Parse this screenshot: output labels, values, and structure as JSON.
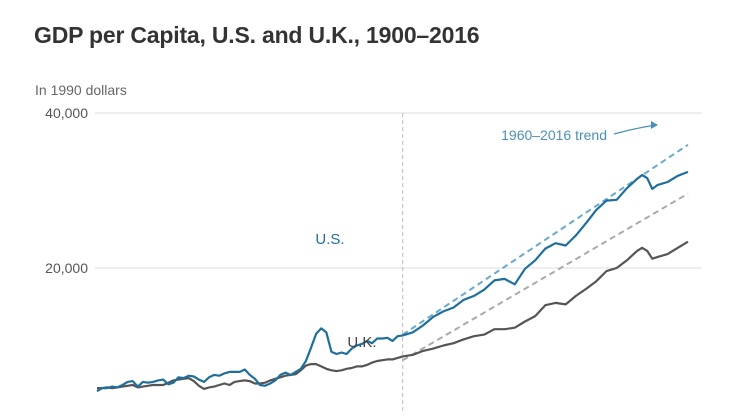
{
  "title": "GDP per Capita, U.S. and U.K., 1900–2016",
  "colors": {
    "us": "#1f6f9c",
    "uk": "#555555",
    "us_trend": "#6aa8cc",
    "uk_trend": "#aaaaaa",
    "grid": "#dddddd",
    "divider": "#bbbbbb",
    "annotation": "#4a90b8"
  },
  "chart_data": {
    "type": "line",
    "title": "GDP per Capita, U.S. and U.K., 1900–2016",
    "ylabel": "In 1990 dollars",
    "xlabel": "",
    "xlim": [
      1900,
      2016
    ],
    "ylim": [
      0,
      40000
    ],
    "y_ticks": [
      20000,
      40000
    ],
    "y_tick_labels": [
      "20,000",
      "40,000"
    ],
    "grid": true,
    "divider_year": 1960,
    "annotations": {
      "trend": "1960–2016 trend",
      "us_label": "U.S.",
      "uk_label": "U.K."
    },
    "series": [
      {
        "name": "U.S.",
        "x": [
          1900,
          1901,
          1902,
          1903,
          1904,
          1905,
          1906,
          1907,
          1908,
          1909,
          1910,
          1911,
          1912,
          1913,
          1914,
          1915,
          1916,
          1917,
          1918,
          1919,
          1920,
          1921,
          1922,
          1923,
          1924,
          1925,
          1926,
          1927,
          1928,
          1929,
          1930,
          1931,
          1932,
          1933,
          1934,
          1935,
          1936,
          1937,
          1938,
          1939,
          1940,
          1941,
          1942,
          1943,
          1944,
          1945,
          1946,
          1947,
          1948,
          1949,
          1950,
          1951,
          1952,
          1953,
          1954,
          1955,
          1956,
          1957,
          1958,
          1959,
          1960,
          1962,
          1964,
          1966,
          1968,
          1970,
          1972,
          1974,
          1976,
          1978,
          1980,
          1982,
          1984,
          1986,
          1988,
          1990,
          1992,
          1994,
          1996,
          1998,
          2000,
          2002,
          2004,
          2006,
          2007,
          2008,
          2009,
          2010,
          2012,
          2014,
          2016
        ],
        "values": [
          4100,
          4500,
          4500,
          4700,
          4600,
          4900,
          5300,
          5400,
          4700,
          5300,
          5200,
          5300,
          5500,
          5600,
          5000,
          5200,
          5900,
          5800,
          6100,
          6000,
          5600,
          5300,
          5900,
          6200,
          6100,
          6400,
          6600,
          6600,
          6600,
          6900,
          6200,
          5700,
          4900,
          4800,
          5100,
          5500,
          6200,
          6500,
          6200,
          6600,
          7000,
          8000,
          9700,
          11500,
          12200,
          11700,
          9200,
          8900,
          9100,
          8900,
          9600,
          10000,
          10200,
          10600,
          10300,
          10900,
          10900,
          11000,
          10600,
          11200,
          11300,
          11700,
          12600,
          13700,
          14400,
          14900,
          15900,
          16400,
          17200,
          18400,
          18600,
          17900,
          19900,
          21000,
          22500,
          23200,
          22900,
          24200,
          25800,
          27500,
          28700,
          28800,
          30300,
          31500,
          32000,
          31600,
          30200,
          30700,
          31100,
          31900,
          32400
        ]
      },
      {
        "name": "U.K.",
        "x": [
          1900,
          1901,
          1902,
          1903,
          1904,
          1905,
          1906,
          1907,
          1908,
          1909,
          1910,
          1911,
          1912,
          1913,
          1914,
          1915,
          1916,
          1917,
          1918,
          1919,
          1920,
          1921,
          1922,
          1923,
          1924,
          1925,
          1926,
          1927,
          1928,
          1929,
          1930,
          1931,
          1932,
          1933,
          1934,
          1935,
          1936,
          1937,
          1938,
          1939,
          1940,
          1941,
          1942,
          1943,
          1944,
          1945,
          1946,
          1947,
          1948,
          1949,
          1950,
          1951,
          1952,
          1953,
          1954,
          1955,
          1956,
          1957,
          1958,
          1959,
          1960,
          1962,
          1964,
          1966,
          1968,
          1970,
          1972,
          1974,
          1976,
          1978,
          1980,
          1982,
          1984,
          1986,
          1988,
          1990,
          1992,
          1994,
          1996,
          1998,
          2000,
          2002,
          2004,
          2006,
          2007,
          2008,
          2009,
          2010,
          2012,
          2014,
          2016
        ],
        "values": [
          4500,
          4500,
          4600,
          4500,
          4600,
          4700,
          4800,
          4900,
          4600,
          4700,
          4800,
          4900,
          4900,
          4900,
          5200,
          5500,
          5600,
          5700,
          5800,
          5400,
          4800,
          4400,
          4600,
          4700,
          4900,
          5100,
          4900,
          5300,
          5400,
          5500,
          5400,
          5100,
          5100,
          5200,
          5500,
          5700,
          5900,
          6100,
          6200,
          6300,
          6800,
          7400,
          7600,
          7600,
          7300,
          7000,
          6800,
          6700,
          6800,
          7000,
          7100,
          7300,
          7300,
          7500,
          7800,
          8000,
          8100,
          8200,
          8200,
          8400,
          8600,
          8800,
          9300,
          9600,
          10000,
          10300,
          10800,
          11200,
          11400,
          12100,
          12100,
          12300,
          13100,
          13800,
          15200,
          15500,
          15300,
          16400,
          17300,
          18300,
          19600,
          20000,
          21000,
          22200,
          22600,
          22200,
          21200,
          21400,
          21800,
          22600,
          23400
        ]
      }
    ],
    "trends": [
      {
        "name": "U.S. 1960–2016 trend",
        "x": [
          1960,
          2016
        ],
        "values": [
          11400,
          35900
        ]
      },
      {
        "name": "U.K. 1960–2016 trend",
        "x": [
          1960,
          2016
        ],
        "values": [
          8100,
          29600
        ]
      }
    ]
  }
}
